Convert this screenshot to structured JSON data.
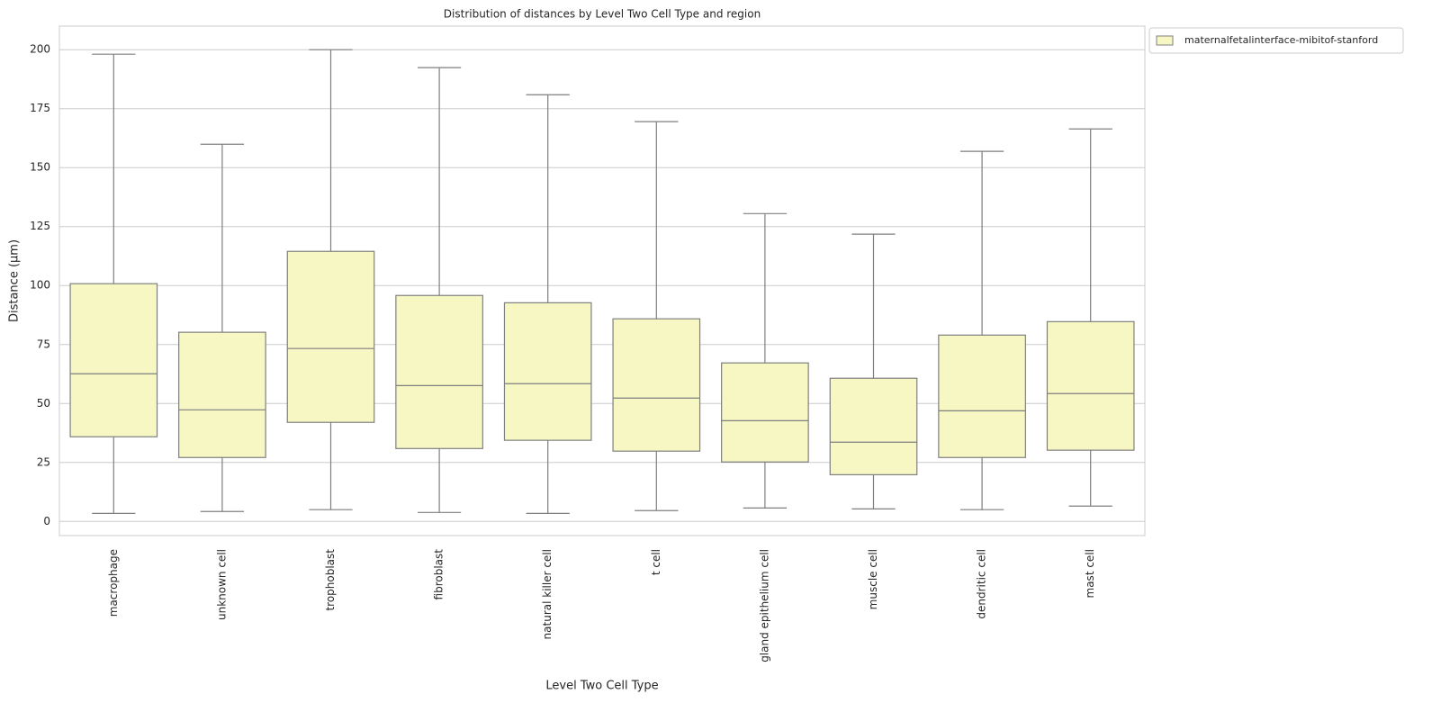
{
  "chart_data": {
    "type": "box",
    "title": "Distribution of distances by Level Two Cell Type and region",
    "x_label": "Level Two Cell Type",
    "y_label": "Distance (µm)",
    "categories": [
      "macrophage",
      "unknown cell",
      "trophoblast",
      "fibroblast",
      "natural killer cell",
      "t cell",
      "gland epithelium cell",
      "muscle cell",
      "dendritic cell",
      "mast cell"
    ],
    "series": [
      {
        "name": "maternalfetalinterface-mibitof-stanford",
        "color": "#f7f7c4",
        "whislo": [
          3.4,
          4.2,
          5.0,
          3.8,
          3.4,
          4.6,
          5.7,
          5.3,
          5.0,
          6.5
        ],
        "q1": [
          35.9,
          27.1,
          42.0,
          30.9,
          34.4,
          29.8,
          25.2,
          19.8,
          27.1,
          30.2
        ],
        "median": [
          62.6,
          47.3,
          73.3,
          57.6,
          58.4,
          52.3,
          42.7,
          33.6,
          46.9,
          54.2
        ],
        "q3": [
          100.8,
          80.2,
          114.5,
          95.8,
          92.7,
          85.9,
          67.2,
          60.7,
          79.0,
          84.7
        ],
        "whishi": [
          198.1,
          159.9,
          200.0,
          192.4,
          180.9,
          169.5,
          130.5,
          121.8,
          156.9,
          166.4
        ]
      }
    ],
    "ylim": [
      -6,
      210
    ],
    "yticks": [
      0,
      25,
      50,
      75,
      100,
      125,
      150,
      175,
      200
    ],
    "grid": true,
    "legend": "outside-upper-right"
  }
}
